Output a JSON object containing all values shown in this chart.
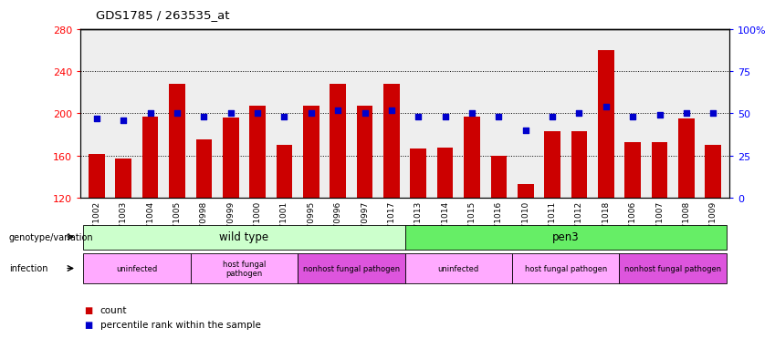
{
  "title": "GDS1785 / 263535_at",
  "samples": [
    "GSM71002",
    "GSM71003",
    "GSM71004",
    "GSM71005",
    "GSM70998",
    "GSM70999",
    "GSM71000",
    "GSM71001",
    "GSM70995",
    "GSM70996",
    "GSM70997",
    "GSM71017",
    "GSM71013",
    "GSM71014",
    "GSM71015",
    "GSM71016",
    "GSM71010",
    "GSM71011",
    "GSM71012",
    "GSM71018",
    "GSM71006",
    "GSM71007",
    "GSM71008",
    "GSM71009"
  ],
  "counts": [
    162,
    157,
    197,
    228,
    175,
    196,
    207,
    170,
    207,
    228,
    207,
    228,
    167,
    168,
    197,
    160,
    133,
    183,
    183,
    260,
    173,
    173,
    195,
    170
  ],
  "percentile": [
    47,
    46,
    50,
    50,
    48,
    50,
    50,
    48,
    50,
    52,
    50,
    52,
    48,
    48,
    50,
    48,
    40,
    48,
    50,
    54,
    48,
    49,
    50,
    50
  ],
  "ylim_left": [
    120,
    280
  ],
  "ylim_right": [
    0,
    100
  ],
  "yticks_left": [
    120,
    160,
    200,
    240,
    280
  ],
  "yticks_right": [
    0,
    25,
    50,
    75,
    100
  ],
  "ytick_labels_right": [
    "0",
    "25",
    "50",
    "75",
    "100%"
  ],
  "bar_color": "#cc0000",
  "dot_color": "#0000cc",
  "bar_width": 0.6,
  "genotype_groups": [
    {
      "label": "wild type",
      "start": 0,
      "end": 11,
      "color": "#ccffcc"
    },
    {
      "label": "pen3",
      "start": 12,
      "end": 23,
      "color": "#66ee66"
    }
  ],
  "infection_groups": [
    {
      "label": "uninfected",
      "start": 0,
      "end": 3,
      "color": "#ffaaff"
    },
    {
      "label": "host fungal\npathogen",
      "start": 4,
      "end": 7,
      "color": "#ffaaff"
    },
    {
      "label": "nonhost fungal pathogen",
      "start": 8,
      "end": 11,
      "color": "#dd55dd"
    },
    {
      "label": "uninfected",
      "start": 12,
      "end": 15,
      "color": "#ffaaff"
    },
    {
      "label": "host fungal pathogen",
      "start": 16,
      "end": 19,
      "color": "#ffaaff"
    },
    {
      "label": "nonhost fungal pathogen",
      "start": 20,
      "end": 23,
      "color": "#dd55dd"
    }
  ],
  "bg_color": "#eeeeee",
  "legend_items": [
    {
      "color": "#cc0000",
      "label": "count"
    },
    {
      "color": "#0000cc",
      "label": "percentile rank within the sample"
    }
  ]
}
